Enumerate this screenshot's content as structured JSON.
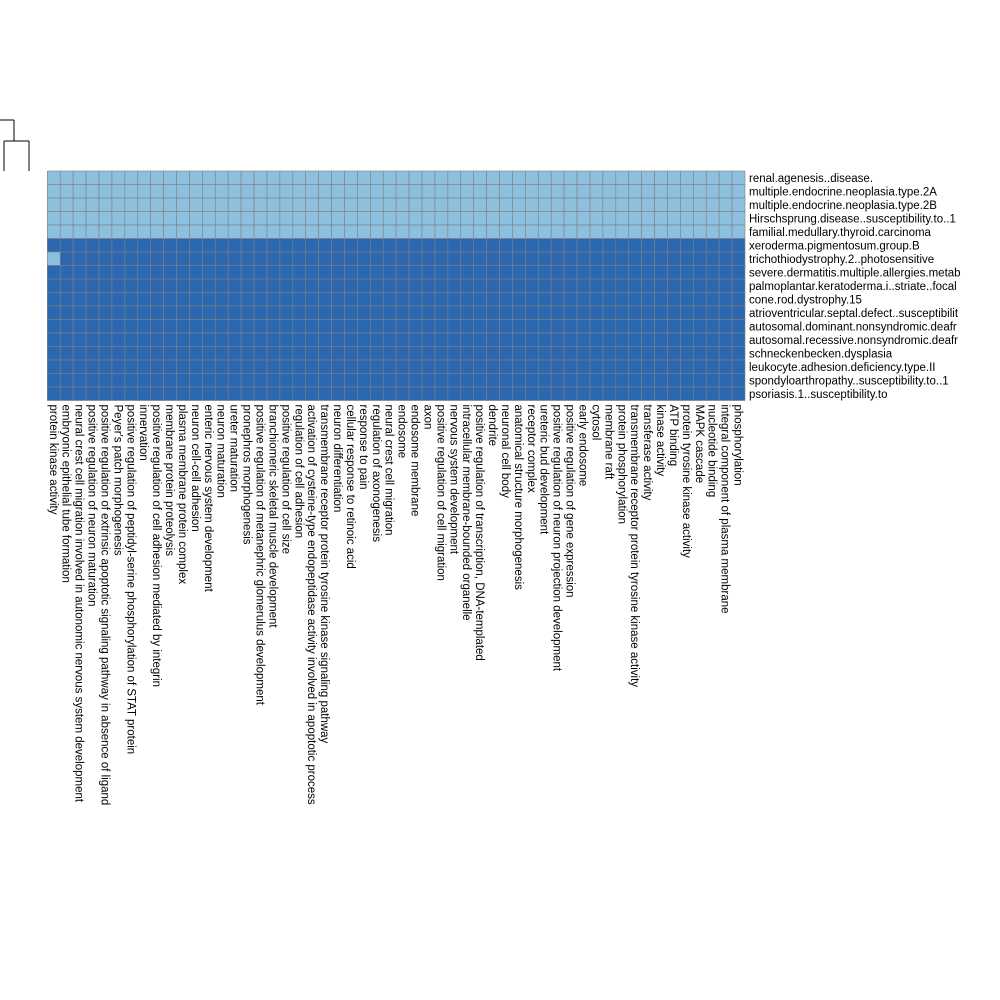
{
  "chart_data": {
    "type": "heatmap",
    "title": "",
    "xlabel": "",
    "ylabel": "",
    "grid": true,
    "colors": {
      "low": "#8dbfde",
      "high": "#2c68b0",
      "grid": "#808080",
      "dendrogram": "#000000"
    },
    "rows": [
      "renal.agenesis..disease.",
      "multiple.endocrine.neoplasia.type.2A",
      "multiple.endocrine.neoplasia.type.2B",
      "Hirschsprung.disease..susceptibility.to..1",
      "familial.medullary.thyroid.carcinoma",
      "xeroderma.pigmentosum.group.B",
      "trichothiodystrophy.2..photosensitive",
      "severe.dermatitis.multiple.allergies.metab",
      "palmoplantar.keratoderma.i..striate..focal",
      "cone.rod.dystrophy.15",
      "atrioventricular.septal.defect..susceptibilit",
      "autosomal.dominant.nonsyndromic.deafr",
      "autosomal.recessive.nonsyndromic.deafr",
      "schneckenbecken.dysplasia",
      "leukocyte.adhesion.deficiency.type.II",
      "spondyloarthropathy..susceptibility.to..1",
      "psoriasis.1..susceptibility.to"
    ],
    "columns": [
      "protein kinase activity",
      "embryonic epithelial tube formation",
      "neural crest cell migration involved in autonomic nervous system development",
      "positive regulation of neuron maturation",
      "positive regulation of extrinsic apoptotic signaling pathway in absence of ligand",
      "Peyer's patch morphogenesis",
      "positive regulation of peptidyl-serine phosphorylation of STAT protein",
      "innervation",
      "positive regulation of cell adhesion mediated by integrin",
      "membrane protein proteolysis",
      "plasma membrane protein complex",
      "neuron cell-cell adhesion",
      "enteric nervous system development",
      "neuron maturation",
      "ureter maturation",
      "pronephros morphogenesis",
      "positive regulation of metanephric glomerulus development",
      "branchiomeric skeletal muscle development",
      "positive regulation of cell size",
      "regulation of cell adhesion",
      "activation of cysteine-type endopeptidase activity involved in apoptotic process",
      "transmembrane receptor protein tyrosine kinase signaling pathway",
      "neuron differentiation",
      "cellular response to retinoic acid",
      "response to pain",
      "regulation of axonogenesis",
      "neural crest cell migration",
      "endosome",
      "endosome membrane",
      "axon",
      "positive regulation of cell migration",
      "nervous system development",
      "intracellular membrane-bounded organelle",
      "positive regulation of transcription, DNA-templated",
      "dendrite",
      "neuronal cell body",
      "anatomical structure morphogenesis",
      "receptor complex",
      "ureteric bud development",
      "positive regulation of neuron projection development",
      "positive regulation of gene expression",
      "early endosome",
      "cytosol",
      "membrane raft",
      "protein phosphorylation",
      "transmembrane receptor protein tyrosine kinase activity",
      "transferase activity",
      "kinase activity",
      "ATP binding",
      "protein tyrosine kinase activity",
      "MAPK cascade",
      "nucleotide binding",
      "integral component of plasma membrane",
      "phosphorylation"
    ],
    "note_values": "cell value 0 = low (light blue), 1 = high (dark blue); rows 1-5 low everywhere, rows 6-17 high everywhere except the first visible column of the row labelled 'trichothiodystrophy.2..photosensitive'",
    "low_rows": [
      0,
      1,
      2,
      3,
      4
    ],
    "exceptions": [
      {
        "row": 6,
        "col": 0,
        "value": 0
      }
    ]
  }
}
